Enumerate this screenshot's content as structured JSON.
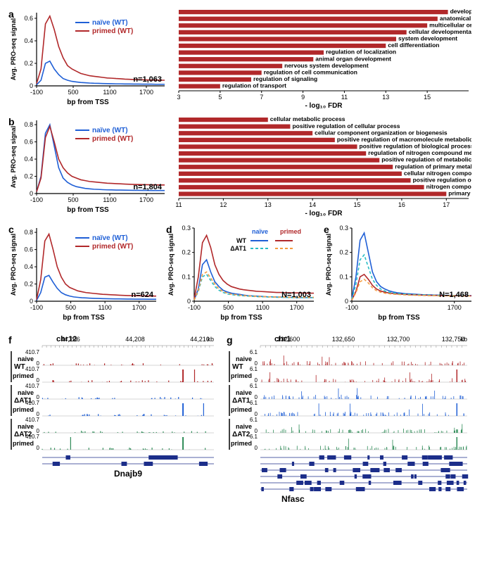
{
  "global": {
    "bg": "#ffffff",
    "axis_color": "#000000",
    "ylabel": "Avg. PRO-seq signal",
    "xlabel": "bp from TSS"
  },
  "series_colors": {
    "naive_wt": "#1f5fd6",
    "primed_wt": "#b1282a",
    "naive_at1": "#29bdc5",
    "primed_at1": "#f59b3f"
  },
  "panel_a": {
    "label": "a",
    "legend": {
      "naive": "naïve (WT)",
      "primed": "primed (WT)"
    },
    "n": "n=1,063",
    "xlim": [
      -100,
      2000
    ],
    "xticks": [
      -100,
      500,
      1100,
      1700
    ],
    "ylim": [
      0,
      0.65
    ],
    "yticks": [
      0,
      0.2,
      0.4,
      0.6
    ],
    "naive": [
      0.01,
      0.05,
      0.2,
      0.22,
      0.15,
      0.1,
      0.065,
      0.05,
      0.04,
      0.035,
      0.03,
      0.028,
      0.025,
      0.023,
      0.022,
      0.021,
      0.02,
      0.019,
      0.018,
      0.018,
      0.017,
      0.017,
      0.016,
      0.016,
      0.015,
      0.015,
      0.015,
      0.014,
      0.014,
      0.014
    ],
    "primed": [
      0.02,
      0.15,
      0.55,
      0.62,
      0.5,
      0.35,
      0.25,
      0.18,
      0.15,
      0.13,
      0.11,
      0.1,
      0.09,
      0.085,
      0.08,
      0.075,
      0.07,
      0.068,
      0.065,
      0.063,
      0.06,
      0.058,
      0.056,
      0.055,
      0.054,
      0.053,
      0.052,
      0.051,
      0.05,
      0.05
    ],
    "go": {
      "terms": [
        "developmental process",
        "anatomical structure development",
        "multicellular organism development",
        "cellular developmental process",
        "system development",
        "cell differentiation",
        "regulation of localization",
        "animal organ development",
        "nervous system development",
        "regulation of cell communication",
        "regulation of signaling",
        "regulation of transport"
      ],
      "values": [
        16,
        15.5,
        15,
        14,
        13.5,
        13,
        10,
        9.5,
        8,
        7,
        6.5,
        5
      ],
      "xlim": [
        3,
        17
      ],
      "xticks": [
        3,
        5,
        7,
        9,
        11,
        13,
        15
      ],
      "xlabel": "- log₁₀ FDR",
      "bar_color": "#b1282a"
    }
  },
  "panel_b": {
    "label": "b",
    "legend": {
      "naive": "naïve (WT)",
      "primed": "primed (WT)"
    },
    "n": "n=1,804",
    "xlim": [
      -100,
      2000
    ],
    "xticks": [
      -100,
      500,
      1100,
      1700
    ],
    "ylim": [
      0,
      0.85
    ],
    "yticks": [
      0,
      0.2,
      0.4,
      0.6,
      0.8
    ],
    "naive": [
      0.02,
      0.2,
      0.7,
      0.8,
      0.55,
      0.3,
      0.18,
      0.13,
      0.1,
      0.08,
      0.07,
      0.06,
      0.055,
      0.05,
      0.048,
      0.045,
      0.043,
      0.042,
      0.04,
      0.04,
      0.039,
      0.038,
      0.037,
      0.037,
      0.036,
      0.036,
      0.035,
      0.035,
      0.035,
      0.035
    ],
    "primed": [
      0.02,
      0.18,
      0.65,
      0.78,
      0.6,
      0.4,
      0.3,
      0.24,
      0.2,
      0.18,
      0.16,
      0.15,
      0.14,
      0.135,
      0.13,
      0.125,
      0.12,
      0.118,
      0.115,
      0.113,
      0.11,
      0.108,
      0.106,
      0.105,
      0.104,
      0.103,
      0.102,
      0.101,
      0.1,
      0.1
    ],
    "go": {
      "terms": [
        "cellular metabolic process",
        "positive regulation of cellular process",
        "cellular component organization or biogenesis",
        "positive regulation of macromolecule metabolic process",
        "positive regulation of biological process",
        "regulation of nitrogen compound metabolic process",
        "positive regulation of metabolic process",
        "regulation of primary metabolic process",
        "cellular nitrogen compound metabolic process",
        "positive regulation of cellular metabolic process",
        "nitrogen compound metabolic process",
        "primary metabolic process"
      ],
      "values": [
        13,
        13.5,
        14,
        14.5,
        15,
        15.2,
        15.5,
        15.8,
        16,
        16.2,
        16.5,
        17
      ],
      "xlim": [
        11,
        17.5
      ],
      "xticks": [
        11,
        12,
        13,
        14,
        15,
        16,
        17
      ],
      "xlabel": "- log₁₀ FDR",
      "bar_color": "#b1282a"
    }
  },
  "panel_c": {
    "label": "c",
    "legend": {
      "naive": "naïve (WT)",
      "primed": "primed (WT)"
    },
    "n": "n=624",
    "xlim": [
      -100,
      2000
    ],
    "xticks": [
      -100,
      500,
      1100,
      1700
    ],
    "ylim": [
      0,
      0.85
    ],
    "yticks": [
      0,
      0.2,
      0.4,
      0.6,
      0.8
    ],
    "naive": [
      0.01,
      0.1,
      0.28,
      0.3,
      0.22,
      0.15,
      0.1,
      0.075,
      0.06,
      0.05,
      0.045,
      0.04,
      0.038,
      0.035,
      0.033,
      0.032,
      0.03,
      0.029,
      0.028,
      0.027,
      0.027,
      0.026,
      0.025,
      0.025,
      0.024,
      0.024,
      0.024,
      0.023,
      0.023,
      0.023
    ],
    "primed": [
      0.02,
      0.25,
      0.7,
      0.78,
      0.6,
      0.4,
      0.28,
      0.2,
      0.16,
      0.14,
      0.12,
      0.11,
      0.1,
      0.095,
      0.09,
      0.085,
      0.08,
      0.078,
      0.075,
      0.073,
      0.07,
      0.068,
      0.066,
      0.065,
      0.064,
      0.063,
      0.062,
      0.061,
      0.06,
      0.06
    ]
  },
  "panel_d": {
    "label": "d",
    "n": "N=1,003",
    "header_naive": "naïve",
    "header_primed": "primed",
    "row_wt": "WT",
    "row_at1": "ΔAT1",
    "xlim": [
      -100,
      2000
    ],
    "xticks": [
      -100,
      500,
      1100,
      1700
    ],
    "ylim": [
      0,
      0.3
    ],
    "yticks": [
      0,
      0.1,
      0.2,
      0.3
    ],
    "series": {
      "naive_wt": [
        0.005,
        0.05,
        0.15,
        0.17,
        0.12,
        0.08,
        0.06,
        0.045,
        0.038,
        0.033,
        0.03,
        0.028,
        0.025,
        0.023,
        0.022,
        0.021,
        0.02,
        0.019,
        0.018,
        0.018,
        0.017,
        0.017,
        0.016,
        0.016,
        0.016,
        0.015,
        0.015,
        0.015,
        0.015,
        0.015
      ],
      "primed_wt": [
        0.01,
        0.1,
        0.24,
        0.27,
        0.22,
        0.15,
        0.11,
        0.085,
        0.07,
        0.06,
        0.055,
        0.05,
        0.047,
        0.045,
        0.043,
        0.041,
        0.04,
        0.039,
        0.038,
        0.037,
        0.036,
        0.036,
        0.035,
        0.035,
        0.034,
        0.034,
        0.034,
        0.033,
        0.033,
        0.033
      ],
      "naive_at1": [
        0.005,
        0.04,
        0.1,
        0.11,
        0.085,
        0.06,
        0.045,
        0.036,
        0.03,
        0.027,
        0.025,
        0.023,
        0.022,
        0.021,
        0.02,
        0.019,
        0.018,
        0.018,
        0.017,
        0.017,
        0.016,
        0.016,
        0.016,
        0.015,
        0.015,
        0.015,
        0.015,
        0.015,
        0.015,
        0.015
      ],
      "primed_at1": [
        0.005,
        0.045,
        0.11,
        0.12,
        0.095,
        0.07,
        0.05,
        0.04,
        0.033,
        0.029,
        0.027,
        0.025,
        0.023,
        0.022,
        0.021,
        0.02,
        0.019,
        0.019,
        0.018,
        0.018,
        0.017,
        0.017,
        0.017,
        0.016,
        0.016,
        0.016,
        0.016,
        0.016,
        0.016,
        0.016
      ]
    }
  },
  "panel_e": {
    "label": "e",
    "n": "N=1,468",
    "xlim": [
      -100,
      2000
    ],
    "xticks": [
      -100,
      1700
    ],
    "ylim": [
      0,
      0.3
    ],
    "yticks": [
      0,
      0.1,
      0.2,
      0.3
    ],
    "series": {
      "naive_wt": [
        0.01,
        0.1,
        0.25,
        0.28,
        0.2,
        0.12,
        0.08,
        0.06,
        0.05,
        0.043,
        0.038,
        0.035,
        0.033,
        0.031,
        0.03,
        0.029,
        0.028,
        0.027,
        0.026,
        0.026,
        0.025,
        0.025,
        0.024,
        0.024,
        0.024,
        0.023,
        0.023,
        0.023,
        0.023,
        0.023
      ],
      "primed_wt": [
        0.005,
        0.04,
        0.1,
        0.11,
        0.09,
        0.065,
        0.05,
        0.042,
        0.037,
        0.034,
        0.032,
        0.03,
        0.029,
        0.028,
        0.027,
        0.026,
        0.026,
        0.025,
        0.025,
        0.024,
        0.024,
        0.024,
        0.023,
        0.023,
        0.023,
        0.023,
        0.022,
        0.022,
        0.022,
        0.022
      ],
      "naive_at1": [
        0.008,
        0.07,
        0.17,
        0.19,
        0.14,
        0.09,
        0.065,
        0.05,
        0.042,
        0.037,
        0.034,
        0.032,
        0.03,
        0.029,
        0.028,
        0.027,
        0.026,
        0.026,
        0.025,
        0.025,
        0.024,
        0.024,
        0.024,
        0.023,
        0.023,
        0.023,
        0.023,
        0.023,
        0.023,
        0.023
      ],
      "primed_at1": [
        0.005,
        0.035,
        0.08,
        0.09,
        0.075,
        0.055,
        0.043,
        0.037,
        0.033,
        0.031,
        0.029,
        0.028,
        0.027,
        0.026,
        0.025,
        0.025,
        0.024,
        0.024,
        0.023,
        0.023,
        0.023,
        0.022,
        0.022,
        0.022,
        0.022,
        0.022,
        0.022,
        0.022,
        0.022,
        0.022
      ]
    }
  },
  "panel_f": {
    "label": "f",
    "chrom": "chr12",
    "coords": [
      "44,206",
      "44,208",
      "44,210"
    ],
    "coord_unit": "kb",
    "ymax": "410.7",
    "groups": [
      "WT",
      "ΔAT1",
      "ΔAT2"
    ],
    "conditions": [
      "naive",
      "primed"
    ],
    "track_colors": {
      "WT": "#b1282a",
      "ΔAT1": "#1f5fd6",
      "ΔAT2": "#2e8b57"
    },
    "gene": "Dnajb9",
    "gene_color": "#1c2e8a"
  },
  "panel_g": {
    "label": "g",
    "chrom": "chr1",
    "coords": [
      "132,600",
      "132,650",
      "132,700",
      "132,750"
    ],
    "coord_unit": "kb",
    "ymax": "6.1",
    "groups": [
      "WT",
      "ΔAT1",
      "ΔAT2"
    ],
    "conditions": [
      "naive",
      "primed"
    ],
    "track_colors": {
      "WT": "#b1282a",
      "ΔAT1": "#1f5fd6",
      "ΔAT2": "#2e8b57"
    },
    "gene": "Nfasc",
    "gene_color": "#1c2e8a"
  }
}
